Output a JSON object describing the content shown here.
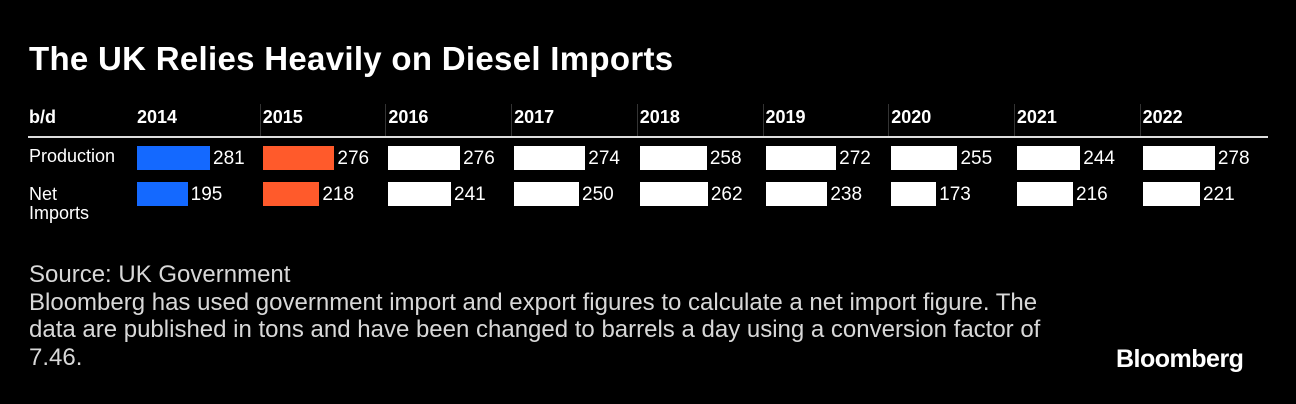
{
  "title": "The UK Relies Heavily on Diesel Imports",
  "unit_label": "b/d",
  "row_labels": [
    "Production",
    "Net Imports"
  ],
  "source_line": "Source: UK Government",
  "note": "Bloomberg has used government import and export figures to calculate a net import figure. The data are published in tons and have been changed to barrels a day using a conversion factor of 7.46.",
  "logo": "Bloomberg",
  "colors": {
    "blue": "#1469ff",
    "orange": "#ff5a2b",
    "default": "#ffffff",
    "background": "#000000"
  },
  "chart_data": {
    "type": "table",
    "title": "The UK Relies Heavily on Diesel Imports",
    "unit": "b/d",
    "categories": [
      "2014",
      "2015",
      "2016",
      "2017",
      "2018",
      "2019",
      "2020",
      "2021",
      "2022"
    ],
    "series": [
      {
        "name": "Production",
        "values": [
          281,
          276,
          276,
          274,
          258,
          272,
          255,
          244,
          278
        ]
      },
      {
        "name": "Net Imports",
        "values": [
          195,
          218,
          241,
          250,
          262,
          238,
          173,
          216,
          221
        ]
      }
    ],
    "highlight": {
      "2014": "blue",
      "2015": "orange"
    },
    "scale_max": 281
  }
}
